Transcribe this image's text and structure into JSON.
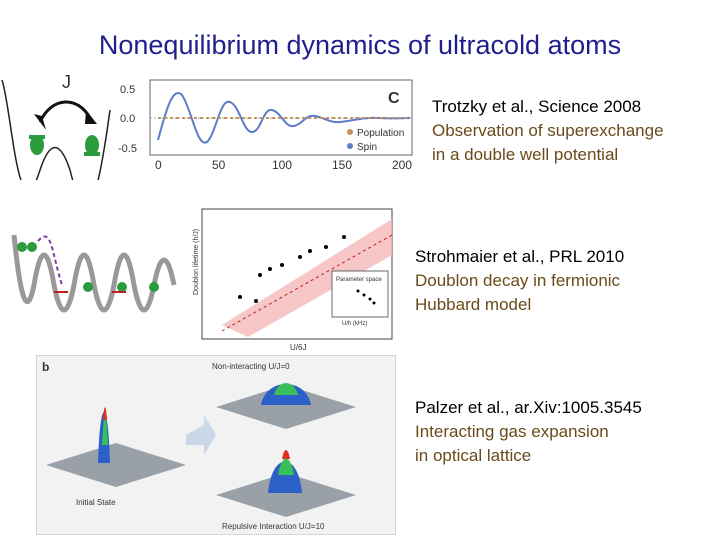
{
  "title": "Nonequilibrium dynamics of ultracold atoms",
  "panel1": {
    "coupling_label": "J",
    "panel_letter": "C",
    "y_ticks": [
      "0.5",
      "0.0",
      "-0.5"
    ],
    "x_ticks": [
      "0",
      "50",
      "100",
      "150",
      "200"
    ],
    "legend": [
      "Population",
      "Spin"
    ],
    "colors": {
      "population": "#c8905a",
      "spin": "#5c7cc8"
    }
  },
  "refs": [
    {
      "citation": "Trotzky et al., Science 2008",
      "lines": [
        "Observation of superexchange",
        "in a double well potential"
      ]
    },
    {
      "citation": "Strohmaier et al., PRL 2010",
      "lines": [
        "Doublon decay in fermionic",
        "Hubbard model"
      ]
    },
    {
      "citation": "Palzer et al., ar.Xiv:1005.3545",
      "lines": [
        "Interacting gas expansion",
        "in optical lattice"
      ]
    }
  ],
  "panel2": {
    "ylabel": "Doublon lifetime (h/J)",
    "xlabel": "U/6J",
    "inset_title": "Parameter space",
    "inset_xlabel": "U/h (kHz)"
  },
  "panel3": {
    "panel_letter": "b",
    "top_label": "Non-interacting U/J=0",
    "initial_label": "Initial State",
    "bottom_label": "Repulsive Interaction U/J=10"
  }
}
